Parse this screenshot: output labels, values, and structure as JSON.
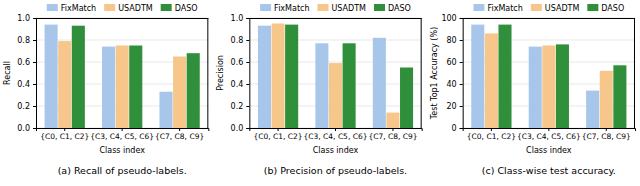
{
  "chart_data": [
    {
      "type": "bar",
      "title": "(a) Recall of pseudo-labels.",
      "x_label": "Class index",
      "y_label": "Recall",
      "categories": [
        "{C0, C1, C2}",
        "{C3, C4, C5, C6}",
        "{C7, C8, C9}"
      ],
      "series": [
        {
          "name": "FixMatch",
          "color": "#a8c6ea",
          "values": [
            0.94,
            0.74,
            0.33
          ]
        },
        {
          "name": "USADTM",
          "color": "#f7c68a",
          "values": [
            0.79,
            0.75,
            0.65
          ]
        },
        {
          "name": "DASO",
          "color": "#2f8f3b",
          "values": [
            0.93,
            0.75,
            0.68
          ]
        }
      ],
      "ylim": [
        0,
        1.0
      ],
      "yticks": [
        {
          "value": 0,
          "label": "0.0"
        },
        {
          "value": 0.2,
          "label": "0.2"
        },
        {
          "value": 0.4,
          "label": "0.4"
        },
        {
          "value": 0.6,
          "label": "0.6"
        },
        {
          "value": 0.8,
          "label": "0.8"
        },
        {
          "value": 1.0,
          "label": "1.0"
        }
      ],
      "grid": true,
      "legend": "top"
    },
    {
      "type": "bar",
      "title": "(b) Precision of pseudo-labels.",
      "x_label": "Class index",
      "y_label": "Precision",
      "categories": [
        "{C0, C1, C2}",
        "{C3, C4, C5, C6}",
        "{C7, C8, C9}"
      ],
      "series": [
        {
          "name": "FixMatch",
          "color": "#a8c6ea",
          "values": [
            0.93,
            0.77,
            0.82
          ]
        },
        {
          "name": "USADTM",
          "color": "#f7c68a",
          "values": [
            0.95,
            0.59,
            0.14
          ]
        },
        {
          "name": "DASO",
          "color": "#2f8f3b",
          "values": [
            0.94,
            0.77,
            0.55
          ]
        }
      ],
      "ylim": [
        0,
        1.0
      ],
      "yticks": [
        {
          "value": 0,
          "label": "0.0"
        },
        {
          "value": 0.2,
          "label": "0.2"
        },
        {
          "value": 0.4,
          "label": "0.4"
        },
        {
          "value": 0.6,
          "label": "0.6"
        },
        {
          "value": 0.8,
          "label": "0.8"
        },
        {
          "value": 1.0,
          "label": "1.0"
        }
      ],
      "grid": true,
      "legend": "top"
    },
    {
      "type": "bar",
      "title": "(c) Class-wise test accuracy.",
      "x_label": "Class index",
      "y_label": "Test Top1 Accuracy (%)",
      "categories": [
        "{C0, C1, C2}",
        "{C3, C4, C5, C6}",
        "{C7, C8, C9}"
      ],
      "series": [
        {
          "name": "FixMatch",
          "color": "#a8c6ea",
          "values": [
            94,
            74,
            34
          ]
        },
        {
          "name": "USADTM",
          "color": "#f7c68a",
          "values": [
            86,
            75,
            52
          ]
        },
        {
          "name": "DASO",
          "color": "#2f8f3b",
          "values": [
            94,
            76,
            57
          ]
        }
      ],
      "ylim": [
        0,
        100
      ],
      "yticks": [
        0,
        20,
        40,
        60,
        80,
        100
      ],
      "grid": true,
      "legend": "top"
    }
  ]
}
